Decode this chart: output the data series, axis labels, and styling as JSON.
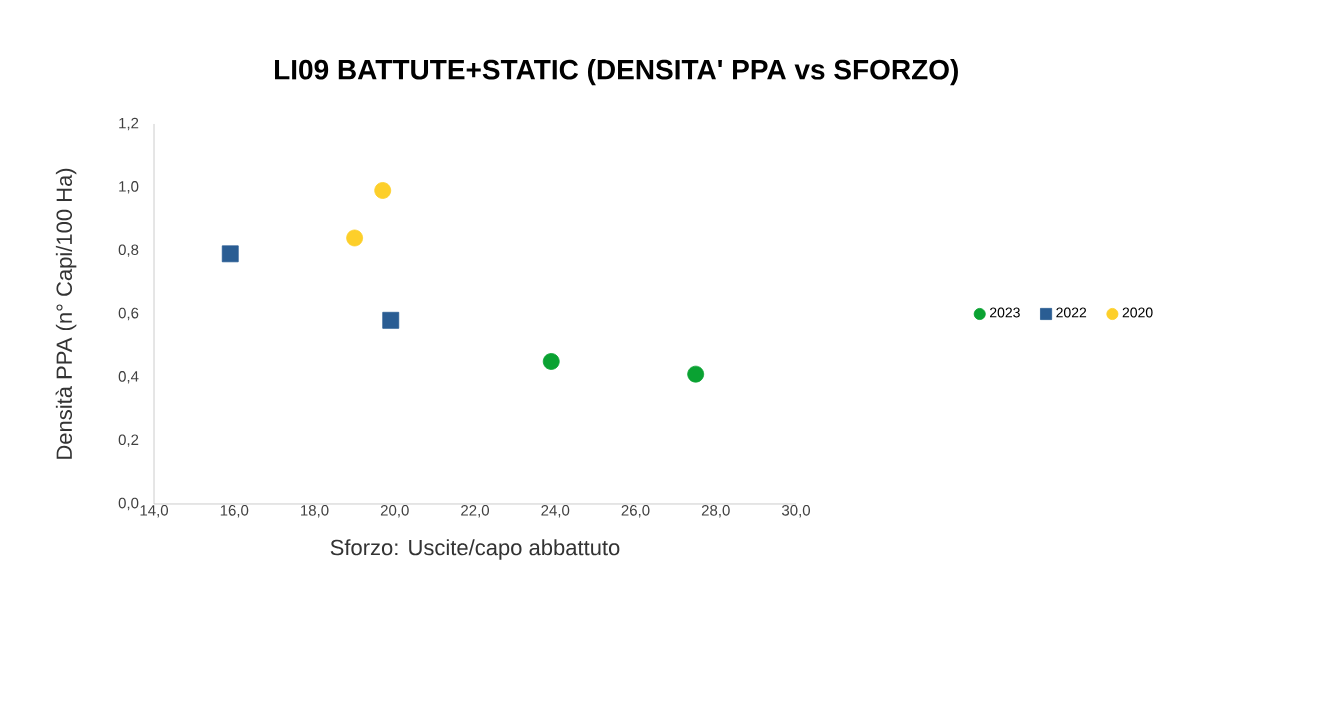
{
  "chart_data": {
    "type": "scatter",
    "title": "LI09  BATTUTE+STATIC (DENSITA' PPA vs SFORZO)",
    "xlabel": "Sforzo: Uscite/capo abbattuto",
    "ylabel": "Densità  PPA (n° Capi/100 Ha)",
    "series": [
      {
        "name": "2023",
        "color": "#0aa232",
        "marker": "circle",
        "x": [
          23.9,
          27.5
        ],
        "values": [
          0.45,
          0.41
        ]
      },
      {
        "name": "2022",
        "color": "#2a5d93",
        "marker": "square",
        "x": [
          15.9,
          19.9
        ],
        "values": [
          0.79,
          0.58
        ]
      },
      {
        "name": "2020",
        "color": "#fdcf2a",
        "marker": "circle",
        "x": [
          19.0,
          19.7
        ],
        "values": [
          0.84,
          0.99
        ]
      }
    ],
    "xlim": [
      14,
      30
    ],
    "ylim": [
      0,
      1.2
    ],
    "xticks": [
      {
        "value": 14,
        "label": "14,0"
      },
      {
        "value": 16,
        "label": "16,0"
      },
      {
        "value": 18,
        "label": "18,0"
      },
      {
        "value": 20,
        "label": "20,0"
      },
      {
        "value": 22,
        "label": "22,0"
      },
      {
        "value": 24,
        "label": "24,0"
      },
      {
        "value": 26,
        "label": "26,0"
      },
      {
        "value": 28,
        "label": "28,0"
      },
      {
        "value": 30,
        "label": "30,0"
      }
    ],
    "yticks": [
      {
        "value": 0,
        "label": "0,0"
      },
      {
        "value": 0.2,
        "label": "0,2"
      },
      {
        "value": 0.4,
        "label": "0,4"
      },
      {
        "value": 0.6,
        "label": "0,6"
      },
      {
        "value": 0.8,
        "label": "0,8"
      },
      {
        "value": 1.0,
        "label": "1,0"
      },
      {
        "value": 1.2,
        "label": "1,2"
      }
    ],
    "grid": false,
    "legend": "right"
  }
}
